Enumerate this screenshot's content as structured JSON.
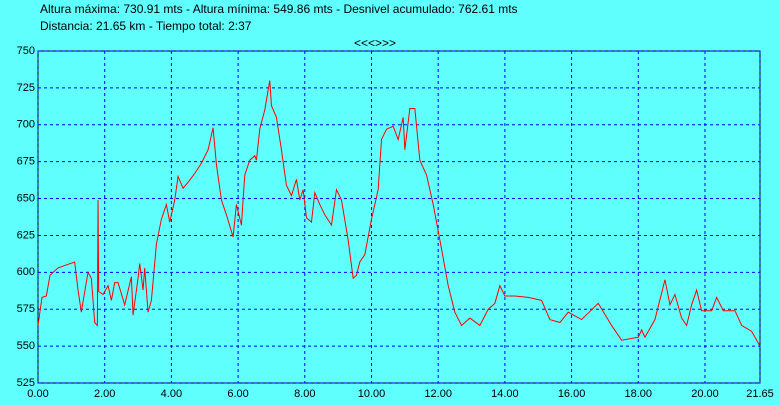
{
  "header": {
    "line1": "Altura máxima: 730.91 mts - Altura mínima: 549.86 mts - Desnivel acumulado: 762.61 mts",
    "line2": "Distancia: 21.65 km - Tiempo total: 2:37",
    "nav": "<<<>>>"
  },
  "chart_data": {
    "type": "line",
    "color": "#ff0000",
    "grid": true,
    "grid_color": "#0000ff",
    "xlim": [
      0,
      21.65
    ],
    "ylim": [
      525,
      750
    ],
    "xticks": [
      {
        "value": 0,
        "label": "0.00"
      },
      {
        "value": 2,
        "label": "2.00"
      },
      {
        "value": 4,
        "label": "4.00"
      },
      {
        "value": 6,
        "label": "6.00"
      },
      {
        "value": 8,
        "label": "8.00"
      },
      {
        "value": 10,
        "label": "10.00"
      },
      {
        "value": 12,
        "label": "12.00"
      },
      {
        "value": 14,
        "label": "14.00"
      },
      {
        "value": 16,
        "label": "16.00"
      },
      {
        "value": 18,
        "label": "18.00"
      },
      {
        "value": 20,
        "label": "20.00"
      },
      {
        "value": 21.65,
        "label": "21.65"
      }
    ],
    "yticks": [
      525,
      550,
      575,
      600,
      625,
      650,
      675,
      700,
      725,
      750
    ],
    "x": [
      0,
      0.12,
      0.25,
      0.36,
      0.6,
      0.85,
      1.1,
      1.2,
      1.3,
      1.35,
      1.5,
      1.6,
      1.7,
      1.78,
      1.8,
      1.82,
      1.95,
      2.1,
      2.2,
      2.3,
      2.4,
      2.6,
      2.8,
      2.85,
      3.0,
      3.05,
      3.15,
      3.2,
      3.3,
      3.4,
      3.55,
      3.7,
      3.85,
      3.95,
      4.1,
      4.2,
      4.35,
      4.5,
      4.7,
      4.9,
      5.1,
      5.25,
      5.35,
      5.5,
      5.65,
      5.85,
      5.95,
      6.1,
      6.2,
      6.35,
      6.5,
      6.55,
      6.65,
      6.8,
      6.95,
      7.0,
      7.15,
      7.3,
      7.45,
      7.6,
      7.75,
      7.85,
      7.95,
      8.05,
      8.2,
      8.3,
      8.45,
      8.6,
      8.8,
      8.95,
      9.1,
      9.3,
      9.45,
      9.55,
      9.65,
      9.8,
      10.0,
      10.2,
      10.3,
      10.45,
      10.65,
      10.8,
      10.95,
      11.0,
      11.15,
      11.3,
      11.45,
      11.65,
      11.85,
      12.05,
      12.3,
      12.5,
      12.7,
      12.95,
      13.25,
      13.5,
      13.7,
      13.85,
      14.0,
      14.3,
      14.7,
      15.1,
      15.35,
      15.65,
      15.9,
      16.3,
      16.8,
      17.2,
      17.5,
      18.0,
      18.1,
      18.2,
      18.5,
      18.8,
      18.95,
      19.1,
      19.3,
      19.45,
      19.6,
      19.75,
      19.9,
      20.2,
      20.35,
      20.55,
      20.9,
      21.1,
      21.4,
      21.65
    ],
    "values": [
      564,
      583,
      584,
      598,
      603,
      605,
      607,
      588,
      573,
      580,
      600,
      596,
      566,
      564,
      649,
      587,
      585,
      591,
      581,
      593,
      593,
      578,
      597,
      571,
      596,
      606,
      588,
      603,
      573,
      581,
      619,
      636,
      646,
      634,
      649,
      665,
      657,
      661,
      667,
      674,
      683,
      698,
      673,
      649,
      639,
      624,
      646,
      632,
      666,
      676,
      679,
      676,
      697,
      710,
      730,
      713,
      705,
      683,
      659,
      652,
      663,
      649,
      656,
      637,
      634,
      654,
      646,
      639,
      632,
      656,
      649,
      622,
      596,
      598,
      607,
      612,
      636,
      656,
      690,
      697,
      699,
      690,
      705,
      683,
      711,
      711,
      676,
      666,
      646,
      622,
      591,
      573,
      564,
      569,
      564,
      575,
      579,
      591,
      584,
      584,
      583,
      581,
      568,
      566,
      573,
      568,
      579,
      564,
      554,
      556,
      561,
      556,
      568,
      595,
      578,
      585,
      569,
      564,
      578,
      588,
      574,
      574,
      583,
      574,
      574,
      564,
      560,
      550
    ]
  }
}
